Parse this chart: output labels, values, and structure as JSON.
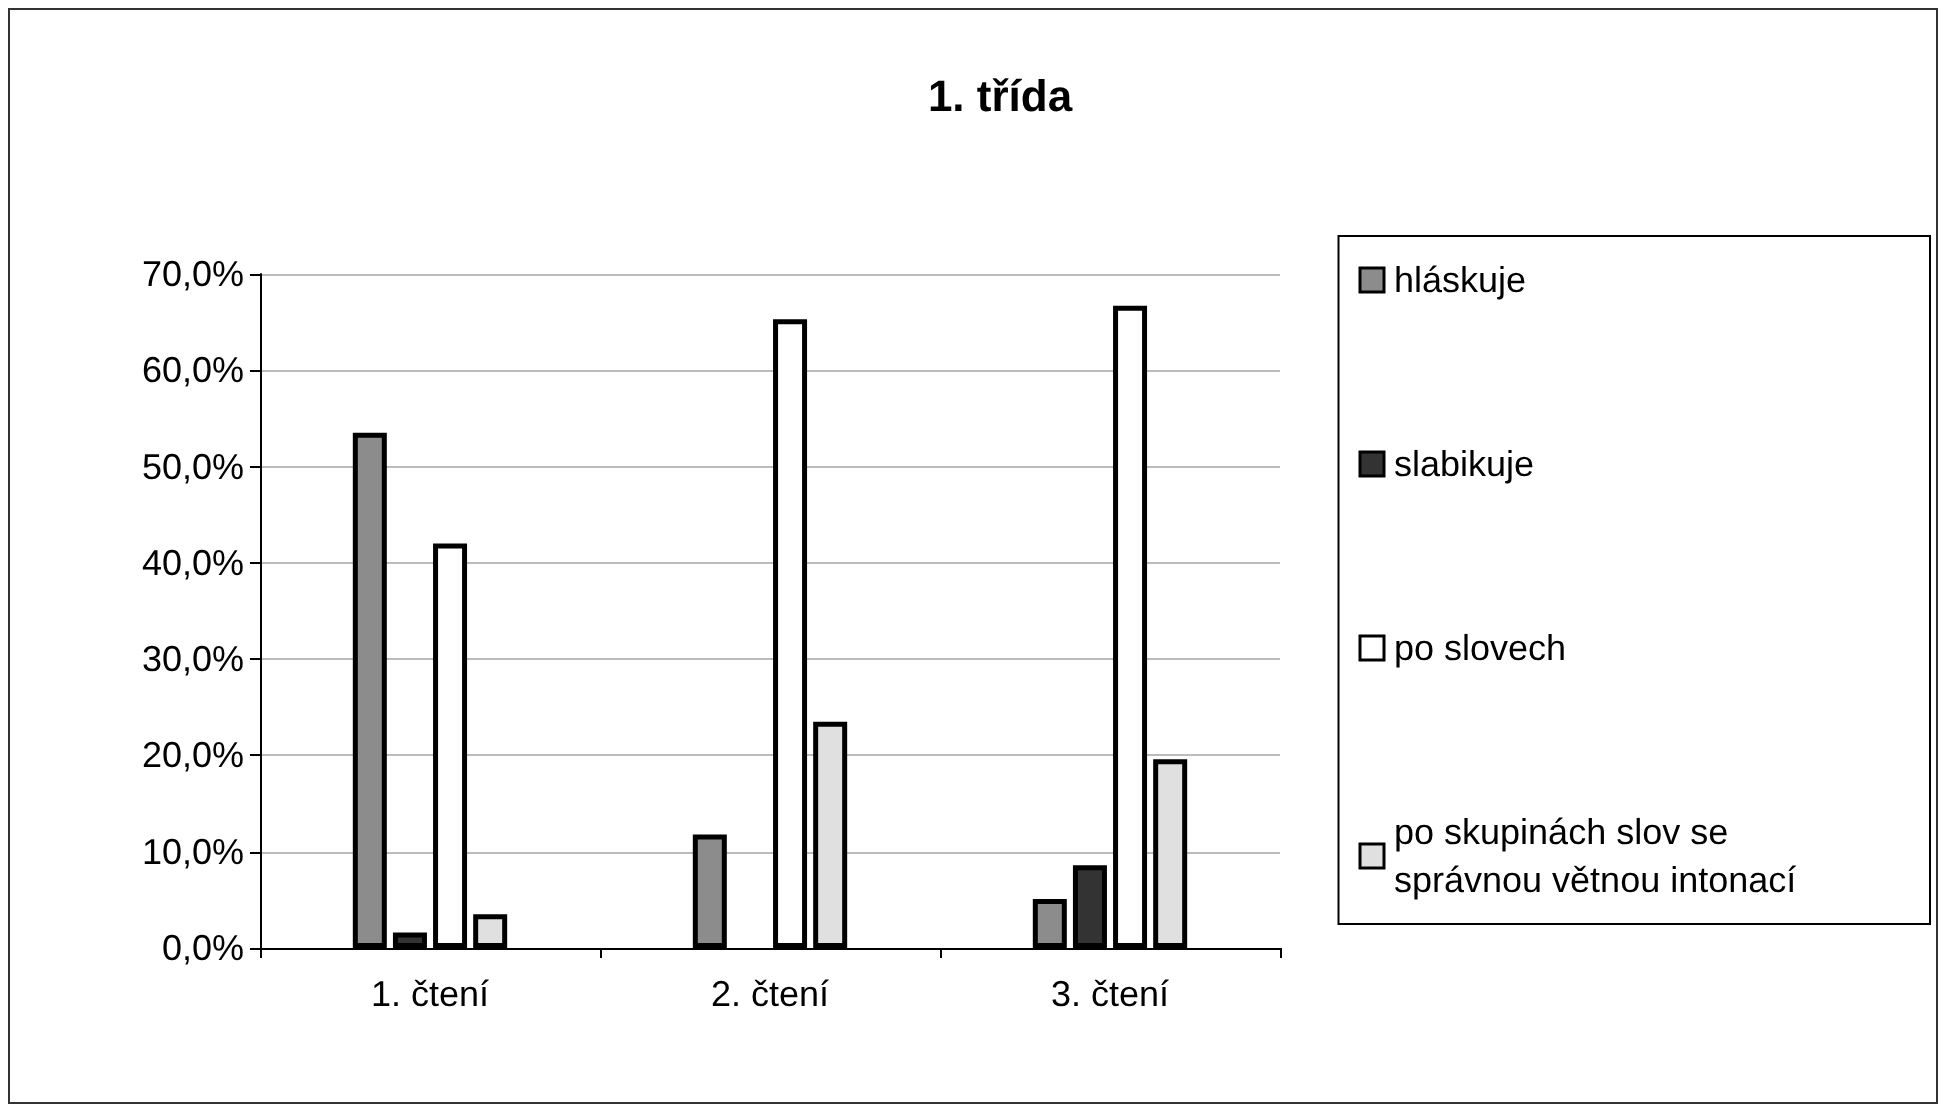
{
  "chart_data": {
    "type": "bar",
    "title": "1. třída",
    "categories": [
      "1. čtení",
      "2. čtení",
      "3. čtení"
    ],
    "series": [
      {
        "name": "hláskuje",
        "color": "#8c8c8c",
        "values": [
          53.5,
          11.8,
          5.1
        ]
      },
      {
        "name": "slabikuje",
        "color": "#333333",
        "values": [
          1.6,
          0,
          8.6
        ]
      },
      {
        "name": "po slovech",
        "color": "#ffffff",
        "values": [
          42.0,
          65.3,
          66.7
        ]
      },
      {
        "name": "po skupinách slov se správnou větnou intonací",
        "color": "#e0e0e0",
        "values": [
          3.5,
          23.5,
          19.6
        ]
      }
    ],
    "ylim": [
      0,
      70
    ],
    "yticks": [
      {
        "value": 0,
        "label": "0,0%"
      },
      {
        "value": 10,
        "label": "10,0%"
      },
      {
        "value": 20,
        "label": "20,0%"
      },
      {
        "value": 30,
        "label": "30,0%"
      },
      {
        "value": 40,
        "label": "40,0%"
      },
      {
        "value": 50,
        "label": "50,0%"
      },
      {
        "value": 60,
        "label": "60,0%"
      },
      {
        "value": 70,
        "label": "70,0%"
      }
    ],
    "grid": "y",
    "legend": "right"
  }
}
